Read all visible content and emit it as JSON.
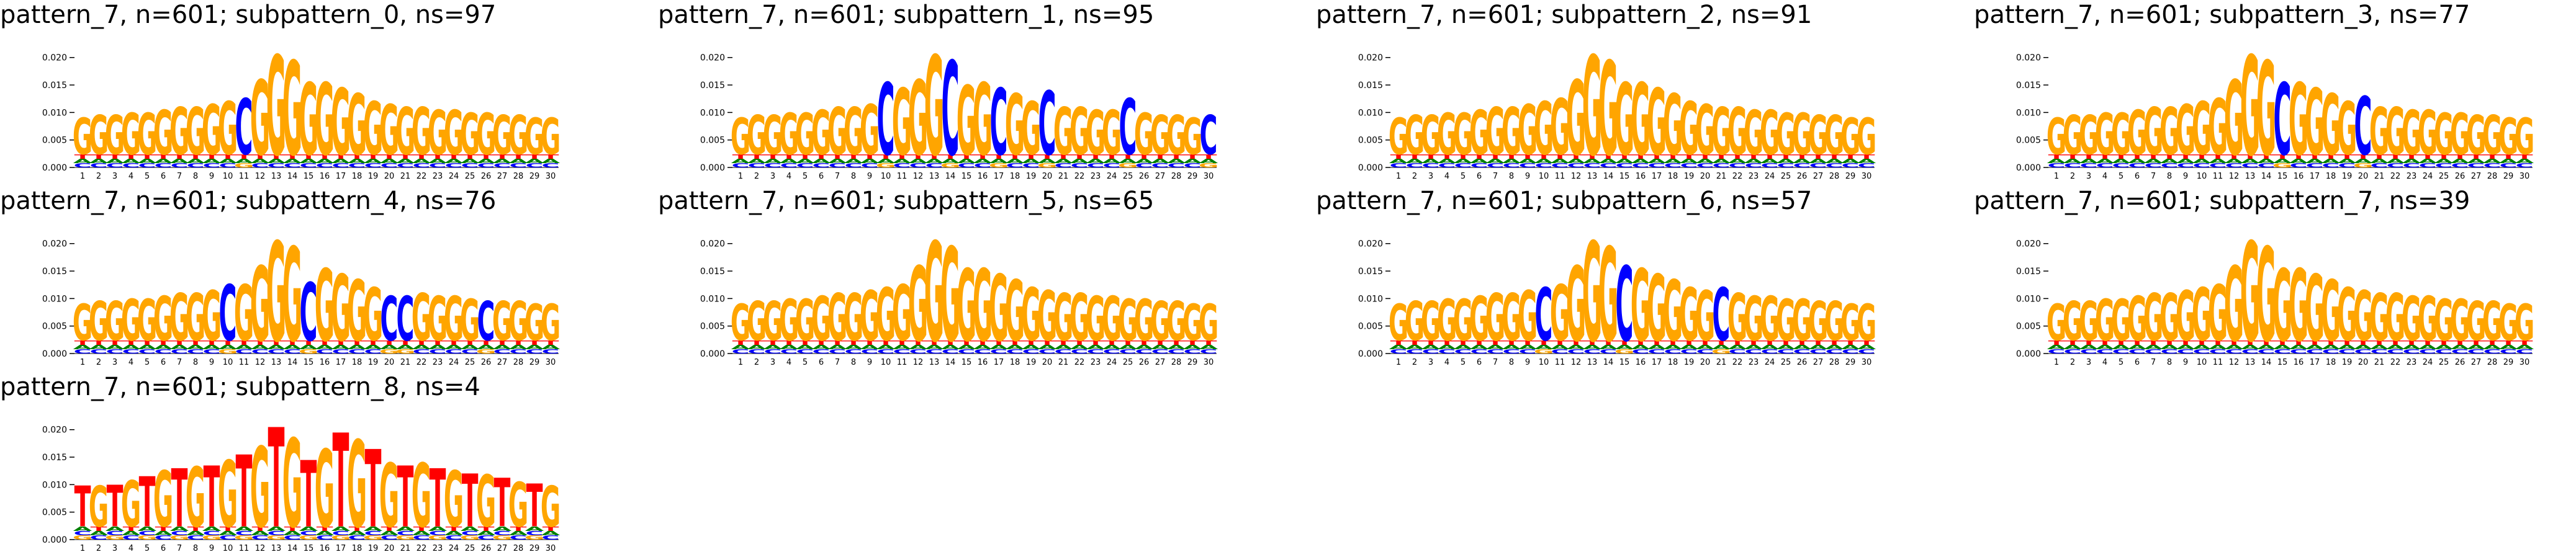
{
  "colors": {
    "G": "#FFA500",
    "C": "#0000FF",
    "A": "#008000",
    "T": "#FF0000"
  },
  "chart_data": [
    {
      "type": "sequence-logo",
      "title": "pattern_7, n=601; subpattern_0, ns=97",
      "positions": [
        1,
        2,
        3,
        4,
        5,
        6,
        7,
        8,
        9,
        10,
        11,
        12,
        13,
        14,
        15,
        16,
        17,
        18,
        19,
        20,
        21,
        22,
        23,
        24,
        25,
        26,
        27,
        28,
        29,
        30
      ],
      "ylim": [
        0,
        0.022
      ],
      "yticks": [
        "0.000",
        "0.005",
        "0.010",
        "0.015",
        "0.020"
      ],
      "top_letter": [
        "G",
        "G",
        "G",
        "G",
        "G",
        "G",
        "G",
        "G",
        "G",
        "G",
        "C",
        "G",
        "G",
        "G",
        "G",
        "G",
        "G",
        "G",
        "G",
        "G",
        "G",
        "G",
        "G",
        "G",
        "G",
        "G",
        "G",
        "G",
        "G",
        "G"
      ],
      "total_height": [
        0.009,
        0.0095,
        0.0095,
        0.01,
        0.01,
        0.0105,
        0.011,
        0.011,
        0.0115,
        0.012,
        0.0125,
        0.016,
        0.0205,
        0.0195,
        0.0155,
        0.0155,
        0.0145,
        0.0135,
        0.012,
        0.0115,
        0.011,
        0.011,
        0.0105,
        0.0105,
        0.01,
        0.01,
        0.0095,
        0.0095,
        0.009,
        0.009
      ]
    },
    {
      "type": "sequence-logo",
      "title": "pattern_7, n=601; subpattern_1, ns=95",
      "positions": [
        1,
        2,
        3,
        4,
        5,
        6,
        7,
        8,
        9,
        10,
        11,
        12,
        13,
        14,
        15,
        16,
        17,
        18,
        19,
        20,
        21,
        22,
        23,
        24,
        25,
        26,
        27,
        28,
        29,
        30
      ],
      "ylim": [
        0,
        0.022
      ],
      "yticks": [
        "0.000",
        "0.005",
        "0.010",
        "0.015",
        "0.020"
      ],
      "top_letter": [
        "G",
        "G",
        "G",
        "G",
        "G",
        "G",
        "G",
        "G",
        "G",
        "C",
        "G",
        "G",
        "G",
        "C",
        "G",
        "G",
        "C",
        "G",
        "G",
        "C",
        "G",
        "G",
        "G",
        "G",
        "C",
        "G",
        "G",
        "G",
        "G",
        "C"
      ],
      "total_height": [
        0.009,
        0.0095,
        0.0095,
        0.01,
        0.01,
        0.0105,
        0.011,
        0.011,
        0.0115,
        0.0155,
        0.0145,
        0.016,
        0.0205,
        0.0195,
        0.015,
        0.0155,
        0.0145,
        0.0135,
        0.012,
        0.014,
        0.011,
        0.011,
        0.0105,
        0.0105,
        0.0125,
        0.01,
        0.0095,
        0.0095,
        0.009,
        0.0095
      ]
    },
    {
      "type": "sequence-logo",
      "title": "pattern_7, n=601; subpattern_2, ns=91",
      "positions": [
        1,
        2,
        3,
        4,
        5,
        6,
        7,
        8,
        9,
        10,
        11,
        12,
        13,
        14,
        15,
        16,
        17,
        18,
        19,
        20,
        21,
        22,
        23,
        24,
        25,
        26,
        27,
        28,
        29,
        30
      ],
      "ylim": [
        0,
        0.022
      ],
      "yticks": [
        "0.000",
        "0.005",
        "0.010",
        "0.015",
        "0.020"
      ],
      "top_letter": [
        "G",
        "G",
        "G",
        "G",
        "G",
        "G",
        "G",
        "G",
        "G",
        "G",
        "G",
        "G",
        "G",
        "G",
        "G",
        "G",
        "G",
        "G",
        "G",
        "G",
        "G",
        "G",
        "G",
        "G",
        "G",
        "G",
        "G",
        "G",
        "G",
        "G"
      ],
      "total_height": [
        0.009,
        0.0095,
        0.0095,
        0.01,
        0.01,
        0.0105,
        0.011,
        0.011,
        0.0115,
        0.012,
        0.0125,
        0.016,
        0.0205,
        0.0195,
        0.0155,
        0.0155,
        0.0145,
        0.0135,
        0.012,
        0.0115,
        0.011,
        0.011,
        0.0105,
        0.0105,
        0.01,
        0.01,
        0.0095,
        0.0095,
        0.009,
        0.009
      ]
    },
    {
      "type": "sequence-logo",
      "title": "pattern_7, n=601; subpattern_3, ns=77",
      "positions": [
        1,
        2,
        3,
        4,
        5,
        6,
        7,
        8,
        9,
        10,
        11,
        12,
        13,
        14,
        15,
        16,
        17,
        18,
        19,
        20,
        21,
        22,
        23,
        24,
        25,
        26,
        27,
        28,
        29,
        30
      ],
      "ylim": [
        0,
        0.022
      ],
      "yticks": [
        "0.000",
        "0.005",
        "0.010",
        "0.015",
        "0.020"
      ],
      "top_letter": [
        "G",
        "G",
        "G",
        "G",
        "G",
        "G",
        "G",
        "G",
        "G",
        "G",
        "G",
        "G",
        "G",
        "G",
        "C",
        "G",
        "G",
        "G",
        "G",
        "C",
        "G",
        "G",
        "G",
        "G",
        "G",
        "G",
        "G",
        "G",
        "G",
        "G"
      ],
      "total_height": [
        0.009,
        0.0095,
        0.0095,
        0.01,
        0.01,
        0.0105,
        0.011,
        0.011,
        0.0115,
        0.012,
        0.0125,
        0.016,
        0.0205,
        0.0195,
        0.0155,
        0.0155,
        0.0145,
        0.0135,
        0.012,
        0.013,
        0.011,
        0.011,
        0.0105,
        0.0105,
        0.01,
        0.01,
        0.0095,
        0.0095,
        0.009,
        0.009
      ]
    },
    {
      "type": "sequence-logo",
      "title": "pattern_7, n=601; subpattern_4, ns=76",
      "positions": [
        1,
        2,
        3,
        4,
        5,
        6,
        7,
        8,
        9,
        10,
        11,
        12,
        13,
        14,
        15,
        16,
        17,
        18,
        19,
        20,
        21,
        22,
        23,
        24,
        25,
        26,
        27,
        28,
        29,
        30
      ],
      "ylim": [
        0,
        0.022
      ],
      "yticks": [
        "0.000",
        "0.005",
        "0.010",
        "0.015",
        "0.020"
      ],
      "top_letter": [
        "G",
        "G",
        "G",
        "G",
        "G",
        "G",
        "G",
        "G",
        "G",
        "C",
        "G",
        "G",
        "G",
        "G",
        "C",
        "G",
        "G",
        "G",
        "G",
        "C",
        "C",
        "G",
        "G",
        "G",
        "G",
        "C",
        "G",
        "G",
        "G",
        "G"
      ],
      "total_height": [
        0.009,
        0.0095,
        0.0095,
        0.01,
        0.01,
        0.0105,
        0.011,
        0.011,
        0.0115,
        0.0125,
        0.0125,
        0.016,
        0.0205,
        0.0195,
        0.013,
        0.0155,
        0.0145,
        0.0135,
        0.012,
        0.0105,
        0.0105,
        0.011,
        0.0105,
        0.0105,
        0.01,
        0.0095,
        0.0095,
        0.0095,
        0.009,
        0.009
      ]
    },
    {
      "type": "sequence-logo",
      "title": "pattern_7, n=601; subpattern_5, ns=65",
      "positions": [
        1,
        2,
        3,
        4,
        5,
        6,
        7,
        8,
        9,
        10,
        11,
        12,
        13,
        14,
        15,
        16,
        17,
        18,
        19,
        20,
        21,
        22,
        23,
        24,
        25,
        26,
        27,
        28,
        29,
        30
      ],
      "ylim": [
        0,
        0.022
      ],
      "yticks": [
        "0.000",
        "0.005",
        "0.010",
        "0.015",
        "0.020"
      ],
      "top_letter": [
        "G",
        "G",
        "G",
        "G",
        "G",
        "G",
        "G",
        "G",
        "G",
        "G",
        "G",
        "G",
        "G",
        "G",
        "G",
        "G",
        "G",
        "G",
        "G",
        "G",
        "G",
        "G",
        "G",
        "G",
        "G",
        "G",
        "G",
        "G",
        "G",
        "G"
      ],
      "total_height": [
        0.009,
        0.0095,
        0.0095,
        0.01,
        0.01,
        0.0105,
        0.011,
        0.011,
        0.0115,
        0.012,
        0.0125,
        0.016,
        0.0205,
        0.0195,
        0.0155,
        0.0155,
        0.0145,
        0.0135,
        0.012,
        0.0115,
        0.011,
        0.011,
        0.0105,
        0.0105,
        0.01,
        0.01,
        0.0095,
        0.0095,
        0.009,
        0.009
      ]
    },
    {
      "type": "sequence-logo",
      "title": "pattern_7, n=601; subpattern_6, ns=57",
      "positions": [
        1,
        2,
        3,
        4,
        5,
        6,
        7,
        8,
        9,
        10,
        11,
        12,
        13,
        14,
        15,
        16,
        17,
        18,
        19,
        20,
        21,
        22,
        23,
        24,
        25,
        26,
        27,
        28,
        29,
        30
      ],
      "ylim": [
        0,
        0.022
      ],
      "yticks": [
        "0.000",
        "0.005",
        "0.010",
        "0.015",
        "0.020"
      ],
      "top_letter": [
        "G",
        "G",
        "G",
        "G",
        "G",
        "G",
        "G",
        "G",
        "G",
        "C",
        "G",
        "G",
        "G",
        "G",
        "C",
        "G",
        "G",
        "G",
        "G",
        "G",
        "C",
        "G",
        "G",
        "G",
        "G",
        "G",
        "G",
        "G",
        "G",
        "G"
      ],
      "total_height": [
        0.009,
        0.0095,
        0.0095,
        0.01,
        0.01,
        0.0105,
        0.011,
        0.011,
        0.0115,
        0.012,
        0.0125,
        0.016,
        0.0205,
        0.0195,
        0.016,
        0.0155,
        0.0145,
        0.0135,
        0.012,
        0.0115,
        0.012,
        0.011,
        0.0105,
        0.0105,
        0.01,
        0.01,
        0.0095,
        0.0095,
        0.009,
        0.009
      ]
    },
    {
      "type": "sequence-logo",
      "title": "pattern_7, n=601; subpattern_7, ns=39",
      "positions": [
        1,
        2,
        3,
        4,
        5,
        6,
        7,
        8,
        9,
        10,
        11,
        12,
        13,
        14,
        15,
        16,
        17,
        18,
        19,
        20,
        21,
        22,
        23,
        24,
        25,
        26,
        27,
        28,
        29,
        30
      ],
      "ylim": [
        0,
        0.022
      ],
      "yticks": [
        "0.000",
        "0.005",
        "0.010",
        "0.015",
        "0.020"
      ],
      "top_letter": [
        "G",
        "G",
        "G",
        "G",
        "G",
        "G",
        "G",
        "G",
        "G",
        "G",
        "G",
        "G",
        "G",
        "G",
        "G",
        "G",
        "G",
        "G",
        "G",
        "G",
        "G",
        "G",
        "G",
        "G",
        "G",
        "G",
        "G",
        "G",
        "G",
        "G"
      ],
      "total_height": [
        0.009,
        0.0095,
        0.0095,
        0.01,
        0.01,
        0.0105,
        0.011,
        0.011,
        0.0115,
        0.012,
        0.0125,
        0.016,
        0.0205,
        0.0195,
        0.0155,
        0.0155,
        0.0145,
        0.0135,
        0.012,
        0.0115,
        0.011,
        0.011,
        0.0105,
        0.0105,
        0.01,
        0.01,
        0.0095,
        0.0095,
        0.009,
        0.009
      ]
    },
    {
      "type": "sequence-logo",
      "title": "pattern_7, n=601; subpattern_8, ns=4",
      "positions": [
        1,
        2,
        3,
        4,
        5,
        6,
        7,
        8,
        9,
        10,
        11,
        12,
        13,
        14,
        15,
        16,
        17,
        18,
        19,
        20,
        21,
        22,
        23,
        24,
        25,
        26,
        27,
        28,
        29,
        30
      ],
      "ylim": [
        0,
        0.022
      ],
      "yticks": [
        "0.000",
        "0.005",
        "0.010",
        "0.015",
        "0.020"
      ],
      "top_letter": [
        "T",
        "G",
        "T",
        "G",
        "T",
        "G",
        "T",
        "G",
        "T",
        "G",
        "T",
        "G",
        "T",
        "G",
        "T",
        "G",
        "T",
        "G",
        "T",
        "G",
        "T",
        "G",
        "T",
        "G",
        "T",
        "G",
        "T",
        "G",
        "T",
        "G"
      ],
      "total_height": [
        0.0098,
        0.0098,
        0.01,
        0.0108,
        0.0115,
        0.0125,
        0.013,
        0.0133,
        0.0135,
        0.0145,
        0.0155,
        0.017,
        0.0205,
        0.0185,
        0.0145,
        0.0165,
        0.0195,
        0.0182,
        0.0165,
        0.014,
        0.0135,
        0.014,
        0.013,
        0.0125,
        0.012,
        0.0118,
        0.0112,
        0.0105,
        0.0102,
        0.0098
      ]
    }
  ]
}
